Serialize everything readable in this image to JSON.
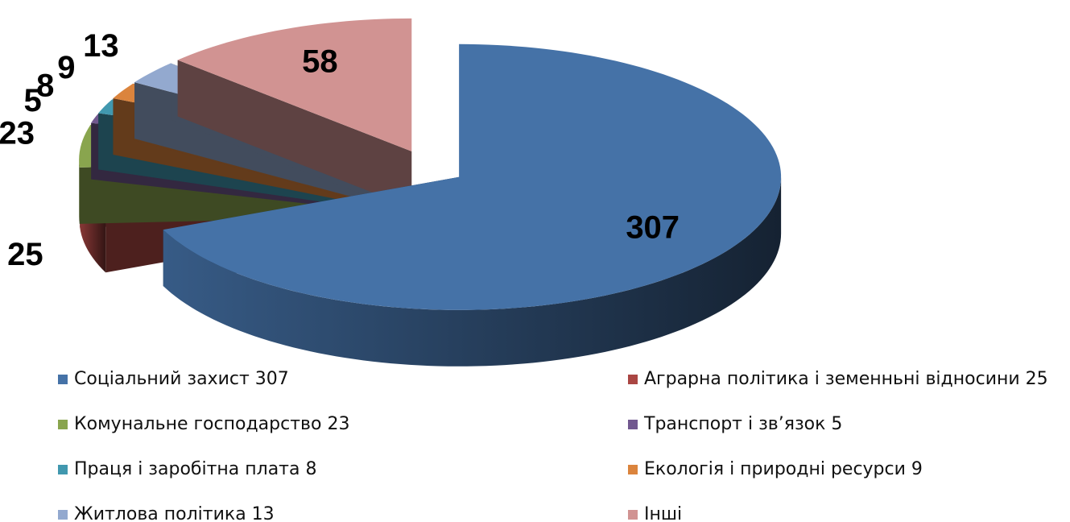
{
  "chart_data": {
    "type": "pie",
    "categories": [
      "Соціальний захист 307",
      "Аграрна політика і земенньні відносини 25",
      "Комунальне господарство 23",
      "Транспорт і зв’язок 5",
      "Праця і заробітна плата 8",
      "Екологія і природні ресурси 9",
      "Житлова політика 13",
      "Інші"
    ],
    "values": [
      307,
      25,
      23,
      5,
      8,
      9,
      13,
      58
    ],
    "colors": [
      "#4572a7",
      "#aa4643",
      "#89a54e",
      "#71588f",
      "#4198af",
      "#db843d",
      "#93a9cf",
      "#d19392"
    ],
    "legend": "bottom"
  }
}
